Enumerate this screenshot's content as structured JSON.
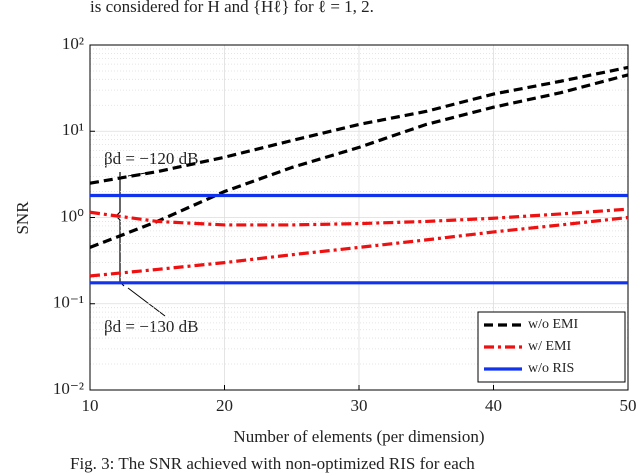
{
  "header_text": "is considered for H and {Hℓ} for ℓ = 1, 2.",
  "caption": "Fig. 3: The SNR achieved with non-optimized RIS for each",
  "chart_data": {
    "type": "line",
    "xlabel": "Number of elements (per dimension)",
    "ylabel": "SNR",
    "x": [
      10,
      15,
      20,
      25,
      30,
      35,
      40,
      45,
      50
    ],
    "xlim": [
      10,
      50
    ],
    "xticks": [
      10,
      20,
      30,
      40,
      50
    ],
    "ylim": [
      0.01,
      100
    ],
    "log_y": true,
    "grid": true,
    "legend": "lower right",
    "yticks": [
      {
        "value": 0.01,
        "label": "10⁻²"
      },
      {
        "value": 0.1,
        "label": "10⁻¹"
      },
      {
        "value": 1,
        "label": "10⁰"
      },
      {
        "value": 10,
        "label": "10¹"
      },
      {
        "value": 100,
        "label": "10²"
      }
    ],
    "annotations": [
      "βd = −120 dB",
      "βd = −130 dB"
    ],
    "series": [
      {
        "name": "w/o EMI",
        "color": "#000000",
        "dash": "9 5",
        "curves": [
          [
            2.5,
            3.4,
            5,
            7.8,
            12,
            17,
            27,
            38,
            55
          ],
          [
            0.45,
            0.9,
            2,
            3.8,
            6.5,
            12,
            19,
            28,
            45
          ]
        ]
      },
      {
        "name": "w/ EMI",
        "color": "#ee1111",
        "dash": "10 4 3 4",
        "curves": [
          [
            1.15,
            0.9,
            0.82,
            0.82,
            0.85,
            0.9,
            0.98,
            1.1,
            1.25
          ],
          [
            0.21,
            0.25,
            0.3,
            0.37,
            0.45,
            0.55,
            0.68,
            0.82,
            1.0
          ]
        ]
      },
      {
        "name": "w/o RIS",
        "color": "#1133ee",
        "dash": "none",
        "curves": [
          [
            1.8,
            1.8,
            1.8,
            1.8,
            1.8,
            1.8,
            1.8,
            1.8,
            1.8
          ],
          [
            0.175,
            0.175,
            0.175,
            0.175,
            0.175,
            0.175,
            0.175,
            0.175,
            0.175
          ]
        ]
      }
    ]
  }
}
